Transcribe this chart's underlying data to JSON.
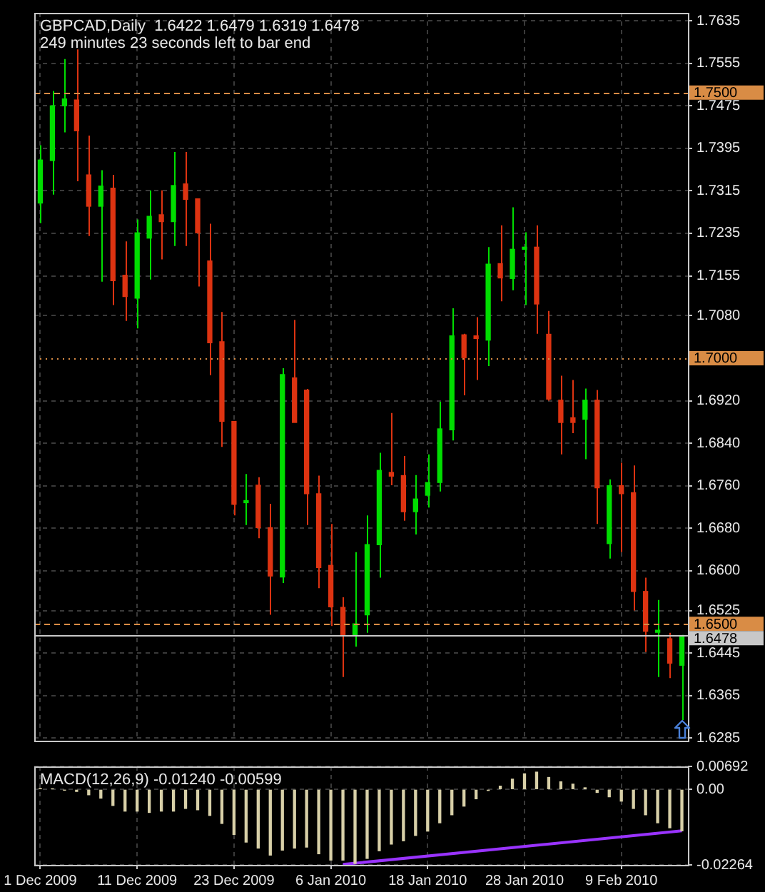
{
  "chart_data": [
    {
      "type": "candlestick",
      "title": "GBPCAD,Daily  1.6422 1.6479 1.6319 1.6478",
      "annotations": [
        "249 minutes 23 seconds left to bar end"
      ],
      "ohlc": [
        [
          1.7292,
          1.7401,
          1.7254,
          1.7373
        ],
        [
          1.7372,
          1.7503,
          1.7308,
          1.7475
        ],
        [
          1.7475,
          1.7563,
          1.7425,
          1.7488
        ],
        [
          1.7486,
          1.7581,
          1.7333,
          1.7428
        ],
        [
          1.7345,
          1.7419,
          1.723,
          1.7286
        ],
        [
          1.7286,
          1.7354,
          1.7144,
          1.7324
        ],
        [
          1.732,
          1.7345,
          1.71,
          1.7146
        ],
        [
          1.7156,
          1.722,
          1.707,
          1.7116
        ],
        [
          1.7113,
          1.7261,
          1.7056,
          1.7236
        ],
        [
          1.7226,
          1.7316,
          1.7148,
          1.7267
        ],
        [
          1.727,
          1.7316,
          1.7186,
          1.7257
        ],
        [
          1.7257,
          1.7388,
          1.7211,
          1.7325
        ],
        [
          1.7328,
          1.7388,
          1.7211,
          1.7299
        ],
        [
          1.73,
          1.73,
          1.7135,
          1.7236
        ],
        [
          1.7183,
          1.7253,
          1.6968,
          1.7029
        ],
        [
          1.7031,
          1.7087,
          1.6833,
          1.6881
        ],
        [
          1.6881,
          1.6881,
          1.6704,
          1.6725
        ],
        [
          1.6728,
          1.6782,
          1.6686,
          1.6732
        ],
        [
          1.6761,
          1.6776,
          1.6661,
          1.6681
        ],
        [
          1.6681,
          1.6726,
          1.6517,
          1.659
        ],
        [
          1.6588,
          1.6981,
          1.6577,
          1.6969
        ],
        [
          1.6963,
          1.7072,
          1.6879,
          1.6879
        ],
        [
          1.694,
          1.6942,
          1.6686,
          1.6745
        ],
        [
          1.6745,
          1.6779,
          1.6567,
          1.6606
        ],
        [
          1.661,
          1.6688,
          1.6496,
          1.6532
        ],
        [
          1.6531,
          1.655,
          1.64,
          1.6477
        ],
        [
          1.6477,
          1.6635,
          1.6457,
          1.65
        ],
        [
          1.6517,
          1.6704,
          1.6483,
          1.6649
        ],
        [
          1.6649,
          1.6822,
          1.6587,
          1.6789
        ],
        [
          1.6785,
          1.6897,
          1.6761,
          1.6778
        ],
        [
          1.6779,
          1.6816,
          1.6694,
          1.6711
        ],
        [
          1.6711,
          1.678,
          1.6668,
          1.6735
        ],
        [
          1.6742,
          1.6819,
          1.6719,
          1.6766
        ],
        [
          1.6766,
          1.6918,
          1.6749,
          1.6867
        ],
        [
          1.6865,
          1.7094,
          1.6845,
          1.7042
        ],
        [
          1.7044,
          1.7046,
          1.693,
          1.7001
        ],
        [
          1.7042,
          1.7077,
          1.6959,
          1.7037
        ],
        [
          1.7034,
          1.7209,
          1.6985,
          1.7177
        ],
        [
          1.7178,
          1.725,
          1.7107,
          1.7151
        ],
        [
          1.715,
          1.7284,
          1.7128,
          1.7205
        ],
        [
          1.7205,
          1.7237,
          1.71,
          1.7209
        ],
        [
          1.7209,
          1.725,
          1.7046,
          1.7102
        ],
        [
          1.7045,
          1.7089,
          1.692,
          1.6923
        ],
        [
          1.6921,
          1.6967,
          1.6819,
          1.6879
        ],
        [
          1.6888,
          1.6959,
          1.6859,
          1.6879
        ],
        [
          1.6885,
          1.6943,
          1.681,
          1.6921
        ],
        [
          1.6921,
          1.694,
          1.6688,
          1.6756
        ],
        [
          1.6651,
          1.6772,
          1.6623,
          1.676
        ],
        [
          1.676,
          1.6803,
          1.6635,
          1.6745
        ],
        [
          1.6747,
          1.6798,
          1.6525,
          1.6561
        ],
        [
          1.6561,
          1.6587,
          1.6447,
          1.6486
        ],
        [
          1.6484,
          1.6545,
          1.64,
          1.6488
        ],
        [
          1.6472,
          1.6483,
          1.6398,
          1.6426
        ],
        [
          1.6422,
          1.6479,
          1.6319,
          1.6478
        ]
      ],
      "colors": [
        "#00dd00",
        "#00dd00",
        "#00dd00",
        "#dd3311",
        "#dd3311",
        "#00dd00",
        "#dd3311",
        "#dd3311",
        "#00dd00",
        "#00dd00",
        "#dd3311",
        "#00dd00",
        "#dd3311",
        "#dd3311",
        "#dd3311",
        "#dd3311",
        "#dd3311",
        "#00dd00",
        "#dd3311",
        "#dd3311",
        "#00dd00",
        "#dd3311",
        "#dd3311",
        "#dd3311",
        "#dd3311",
        "#dd3311",
        "#00dd00",
        "#00dd00",
        "#00dd00",
        "#dd3311",
        "#dd3311",
        "#00dd00",
        "#00dd00",
        "#00dd00",
        "#00dd00",
        "#dd3311",
        "#dd3311",
        "#00dd00",
        "#dd3311",
        "#00dd00",
        "#00dd00",
        "#dd3311",
        "#dd3311",
        "#dd3311",
        "#dd3311",
        "#00dd00",
        "#dd3311",
        "#00dd00",
        "#dd3311",
        "#dd3311",
        "#dd3311",
        "#00dd00",
        "#dd3311",
        "#00dd00"
      ],
      "ylim": [
        1.628,
        1.765
      ],
      "yticks": [
        1.7635,
        1.7555,
        1.7475,
        1.7395,
        1.7315,
        1.7235,
        1.7155,
        {
          "value": 1.708,
          "label": "1.7080"
        },
        {
          "value": 1.692,
          "label": "1.6920"
        },
        {
          "value": 1.684,
          "label": "1.6840"
        },
        {
          "value": 1.676,
          "label": "1.6760"
        },
        {
          "value": 1.668,
          "label": "1.6680"
        },
        {
          "value": 1.66,
          "label": "1.6600"
        },
        1.6525,
        1.6445,
        1.6365,
        1.6285
      ],
      "ref_lines": [
        {
          "axis": "y",
          "value": 1.75,
          "label": "1.7500",
          "color": "#d98c45",
          "line_style": "dashed"
        },
        {
          "axis": "y",
          "value": 1.7,
          "label": "1.7000",
          "color": "#d98c45",
          "line_style": "dotted"
        },
        {
          "axis": "y",
          "value": 1.65,
          "label": "1.6500",
          "color": "#d98c45",
          "line_style": "dashed"
        },
        {
          "axis": "y",
          "value": 1.6478,
          "label": "1.6478",
          "color": "#c8c8c8",
          "line_style": "solid"
        }
      ],
      "grid": true,
      "legend": false,
      "tick_labels": "y"
    },
    {
      "type": "bar",
      "title": "MACD(12,26,9) -0.01240 -0.00599",
      "categories": [
        "1 Dec 2009",
        null,
        null,
        null,
        null,
        null,
        null,
        null,
        "11 Dec 2009",
        null,
        null,
        null,
        null,
        null,
        null,
        null,
        "23 Dec 2009",
        null,
        null,
        null,
        null,
        null,
        null,
        null,
        "6 Jan 2010",
        null,
        null,
        null,
        null,
        null,
        null,
        null,
        "18 Jan 2010",
        null,
        null,
        null,
        null,
        null,
        null,
        null,
        "28 Jan 2010",
        null,
        null,
        null,
        null,
        null,
        null,
        null,
        "9 Feb 2010",
        null,
        null,
        null,
        null,
        null
      ],
      "series": [
        {
          "type": "bar",
          "color": "#d8d0a8",
          "values": [
            0.0003,
            0.0002,
            -0.0002,
            -0.0006,
            -0.0016,
            -0.0026,
            -0.0048,
            -0.0065,
            -0.0065,
            -0.0069,
            -0.0065,
            -0.0065,
            -0.0057,
            -0.0061,
            -0.0078,
            -0.0102,
            -0.0135,
            -0.0158,
            -0.0176,
            -0.0197,
            -0.0182,
            -0.0176,
            -0.0173,
            -0.0193,
            -0.0212,
            -0.0212,
            -0.0222,
            -0.0207,
            -0.0184,
            -0.0164,
            -0.0154,
            -0.0138,
            -0.0125,
            -0.01,
            -0.0076,
            -0.005,
            -0.0028,
            -0.0003,
            0.001,
            0.0031,
            0.0047,
            0.0052,
            0.0036,
            0.0023,
            0.0016,
            0.0005,
            -0.0009,
            -0.0022,
            -0.0035,
            -0.0057,
            -0.0076,
            -0.01,
            -0.0115,
            -0.0124
          ]
        },
        {
          "type": "line",
          "color": "#9933ff",
          "values": [
            null,
            null,
            null,
            null,
            null,
            null,
            null,
            null,
            null,
            null,
            null,
            null,
            null,
            null,
            null,
            null,
            null,
            null,
            null,
            null,
            null,
            null,
            null,
            null,
            null,
            -0.0225,
            null,
            null,
            null,
            null,
            null,
            null,
            null,
            null,
            null,
            null,
            null,
            null,
            null,
            null,
            null,
            null,
            null,
            null,
            null,
            null,
            null,
            null,
            null,
            null,
            null,
            null,
            null,
            -0.0124
          ]
        }
      ],
      "ylim": [
        -0.02264,
        0.00692
      ],
      "yticks": [
        0.00692,
        {
          "value": 0,
          "label": "0.00"
        },
        -0.02264
      ],
      "grid": true,
      "legend": false
    }
  ]
}
